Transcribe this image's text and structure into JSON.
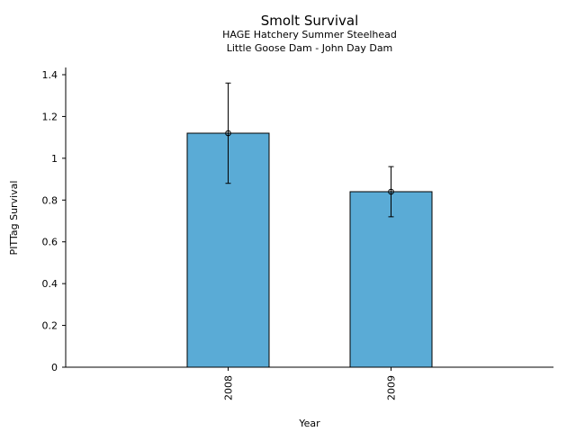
{
  "chart_data": {
    "type": "bar",
    "title": "Smolt Survival",
    "subtitle_lines": [
      "HAGE Hatchery Summer Steelhead",
      "Little Goose Dam - John Day Dam"
    ],
    "xlabel": "Year",
    "ylabel": "PITTag Survival",
    "categories": [
      "2008",
      "2009"
    ],
    "values": [
      1.12,
      0.84
    ],
    "error_low": [
      0.88,
      0.72
    ],
    "error_high": [
      1.36,
      0.96
    ],
    "ylim": [
      0,
      1.4
    ],
    "yticks": [
      0,
      0.2,
      0.4,
      0.6,
      0.8,
      1,
      1.2,
      1.4
    ],
    "ytick_labels": [
      "0",
      "0.2",
      "0.4",
      "0.6",
      "0.8",
      "1",
      "1.2",
      "1.4"
    ],
    "grid": false,
    "bar_color": "#5aabd6",
    "bar_edge_color": "#000000"
  }
}
